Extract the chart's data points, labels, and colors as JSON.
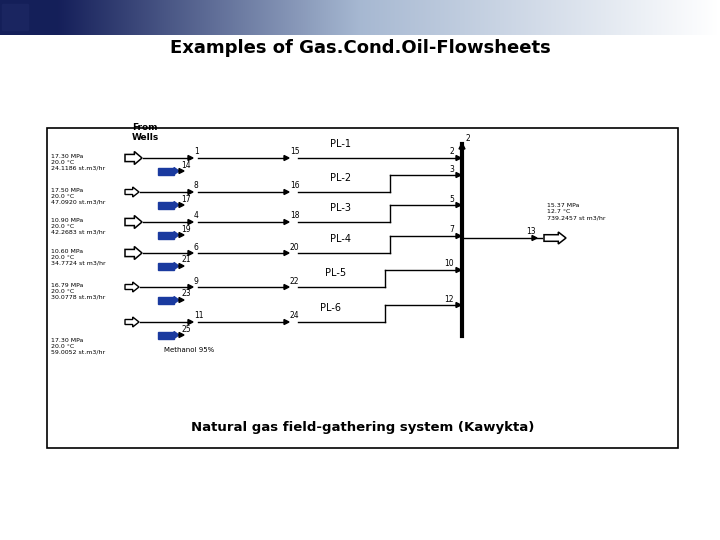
{
  "title": "Examples of Gas.Cond.Oil-Flowsheets",
  "title_fontsize": 13,
  "title_fontweight": "bold",
  "bg_color": "#ffffff",
  "diagram_label": "Natural gas field-gathering system (Kawykta)",
  "from_wells_label": "From\nWells",
  "methanol_label": "Methanol 95%",
  "pl_labels": [
    "PL-1",
    "PL-2",
    "PL-3",
    "PL-4",
    "PL-5",
    "PL-6"
  ],
  "stream_numbers_left": [
    1,
    8,
    4,
    6,
    9,
    11
  ],
  "stream_numbers_blue": [
    14,
    17,
    19,
    21,
    23,
    25
  ],
  "stream_numbers_mid": [
    15,
    16,
    18,
    20,
    22,
    24
  ],
  "stream_numbers_right": [
    2,
    3,
    5,
    7,
    10,
    12
  ],
  "stream_number_13": 13,
  "outlet_conditions": "15.37 MPa\n12.7 °C\n739.2457 st m3/hr",
  "well_conditions": [
    "17.30 MPa\n20.0 °C\n24.1186 st.m3/hr",
    "17.50 MPa\n20.0 °C\n47.0920 st.m3/hr",
    "10.90 MPa\n20.0 °C\n42.2683 st m3/hr",
    "10.60 MPa\n20.0 °C\n34.7724 st m3/hr",
    "16.79 MPa\n20.0 °C\n30.0778 st.m3/hr",
    "17.30 MPa\n20.0 °C\n59.0052 st.m3/hr"
  ],
  "arrow_blue": "#1a3a9f",
  "line_color": "#000000",
  "grad_stop1": [
    0.08,
    0.12,
    0.35
  ],
  "grad_stop2": [
    0.65,
    0.72,
    0.82
  ],
  "grad_stop3": [
    1.0,
    1.0,
    1.0
  ]
}
